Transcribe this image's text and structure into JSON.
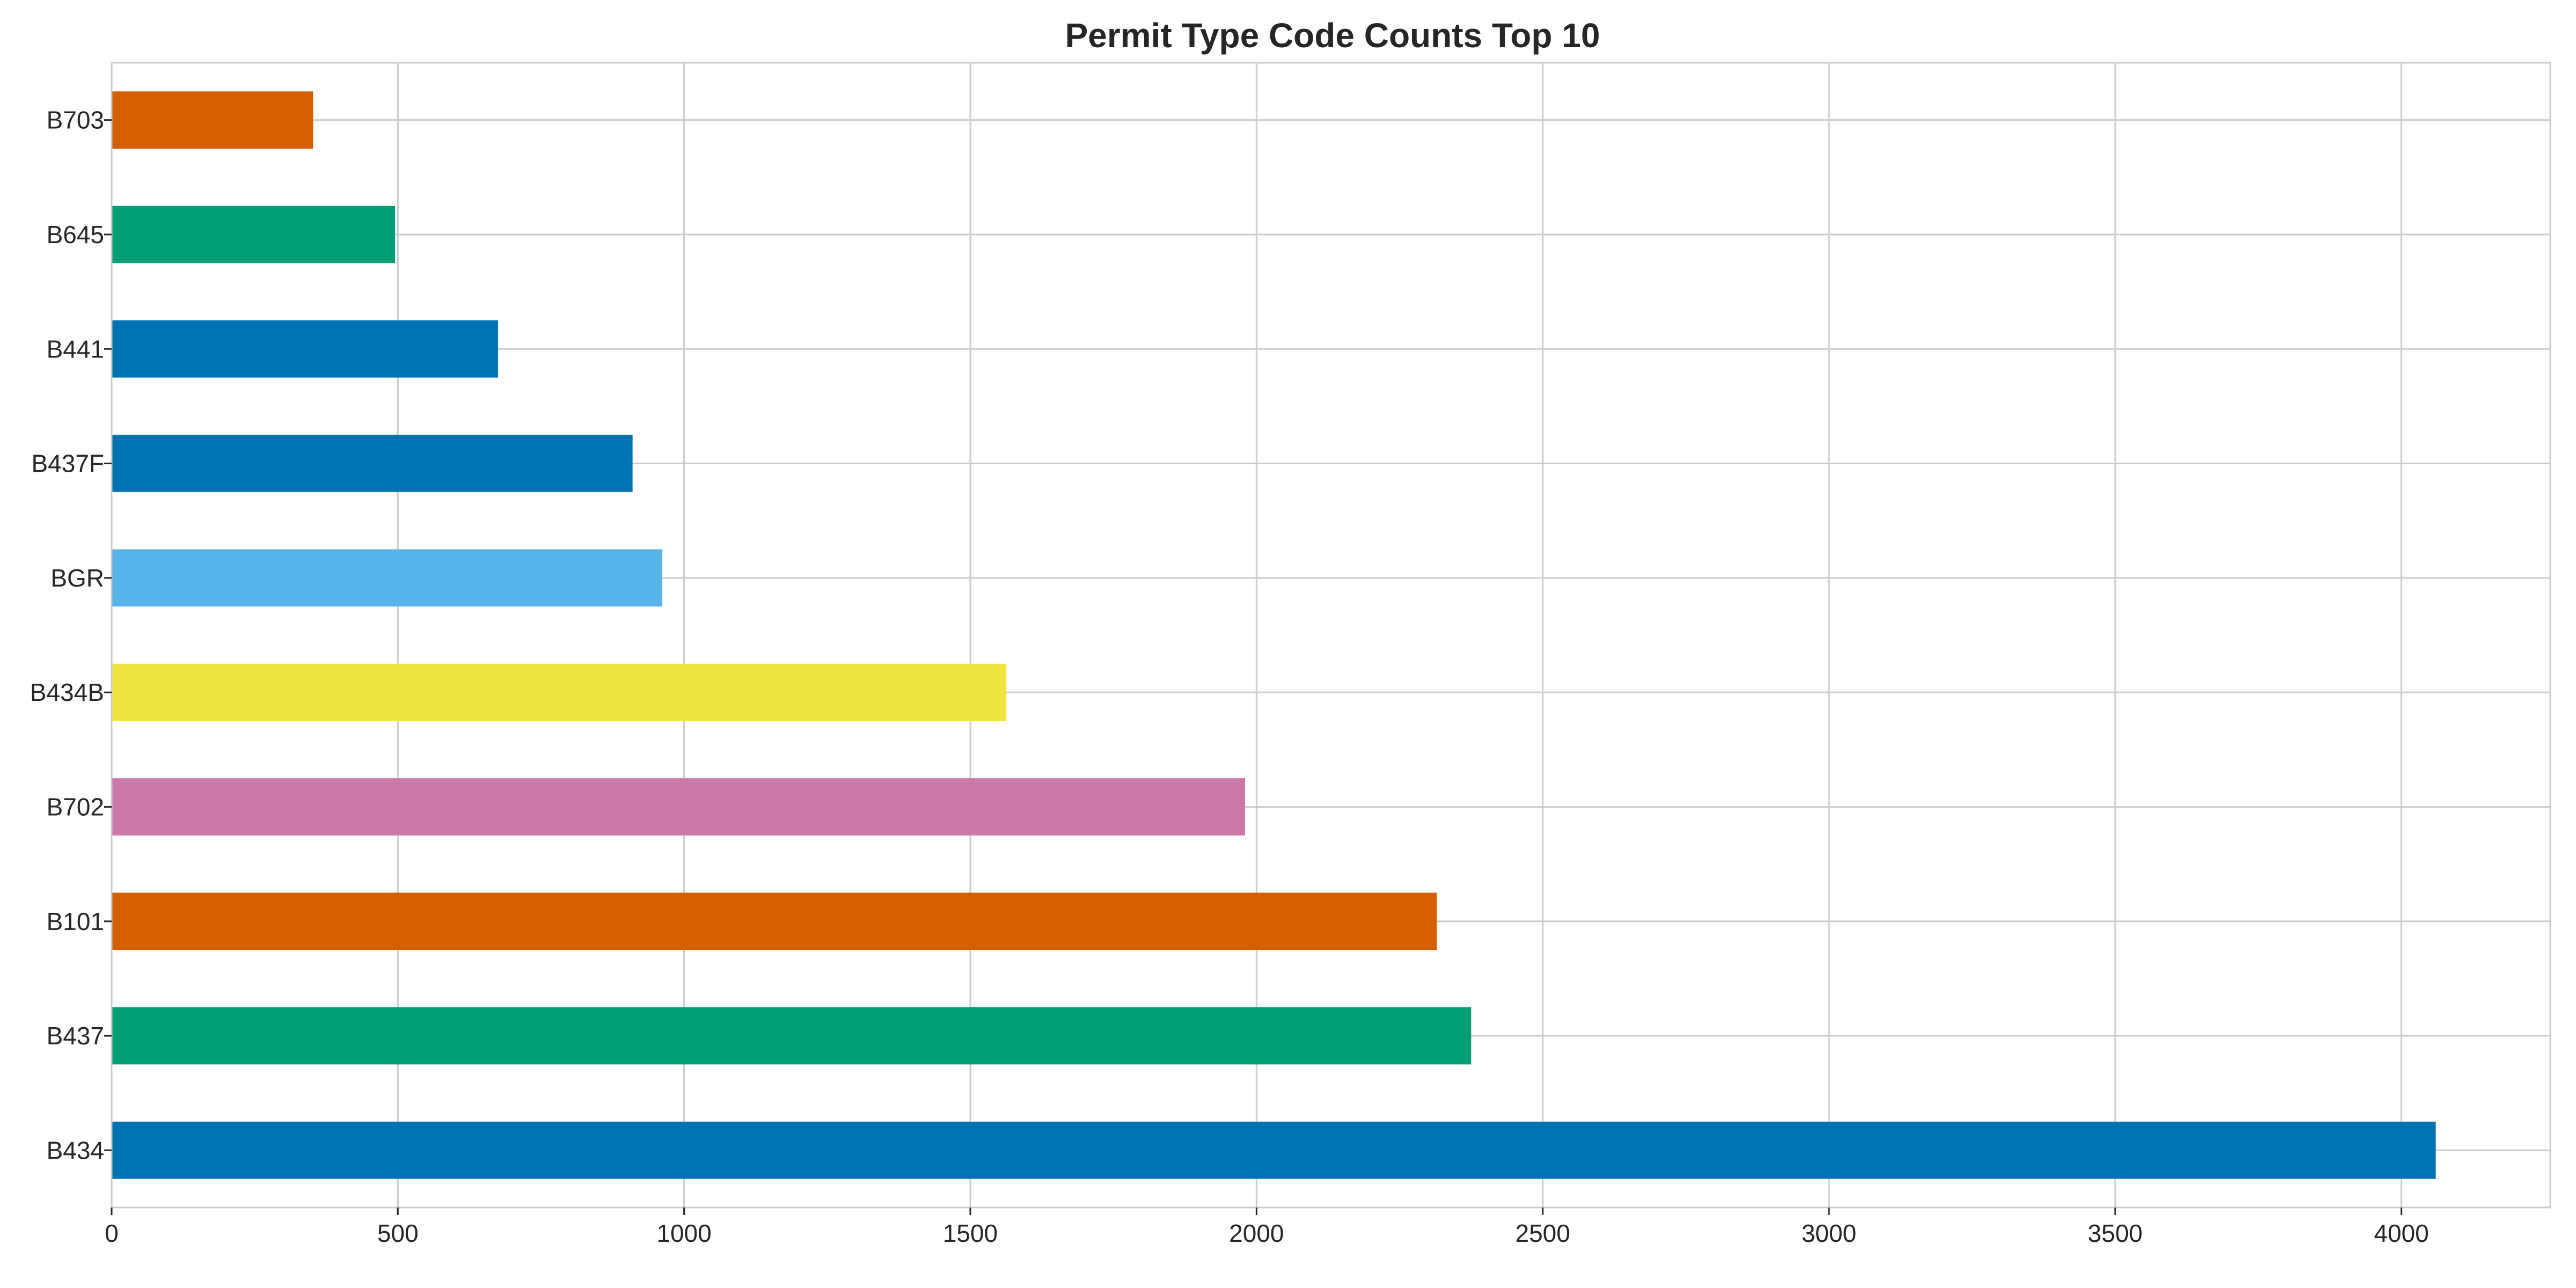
{
  "chart_data": {
    "type": "bar",
    "orientation": "horizontal",
    "title": "Permit Type Code Counts Top 10",
    "xlabel": "",
    "ylabel": "",
    "categories": [
      "B434",
      "B437",
      "B101",
      "B702",
      "B434B",
      "BGR",
      "B437F",
      "B441",
      "B645",
      "B703"
    ],
    "values": [
      4060,
      2375,
      2315,
      1980,
      1563,
      962,
      910,
      675,
      495,
      352
    ],
    "colors": [
      "#0072b2",
      "#009e73",
      "#d55e00",
      "#cc79a7",
      "#f0e442",
      "#56b4e9",
      "#0072b2",
      "#0072b2",
      "#009e73",
      "#d55e00"
    ],
    "xlim": [
      0,
      4260
    ],
    "xticks": [
      0,
      500,
      1000,
      1500,
      2000,
      2500,
      3000,
      3500,
      4000
    ],
    "grid": true,
    "legend": "none"
  }
}
